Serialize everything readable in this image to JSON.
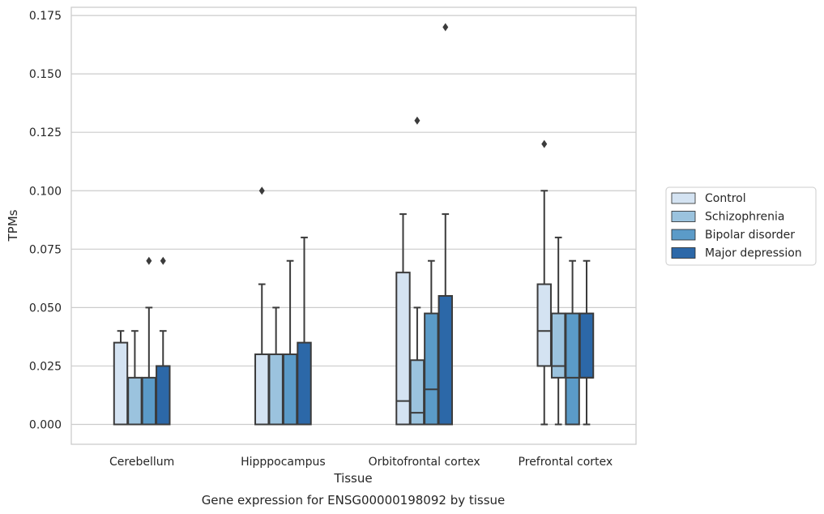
{
  "chart_data": {
    "type": "boxplot",
    "xlabel": "Tissue",
    "ylabel": "TPMs",
    "caption": "Gene expression for ENSG00000198092 by tissue",
    "categories": [
      "Cerebellum",
      "Hipppocampus",
      "Orbitofrontal cortex",
      "Prefrontal cortex"
    ],
    "ylim": [
      -0.0085,
      0.1785
    ],
    "yticks": [
      "0.000",
      "0.025",
      "0.050",
      "0.075",
      "0.100",
      "0.125",
      "0.150",
      "0.175"
    ],
    "ytick_values": [
      0,
      0.025,
      0.05,
      0.075,
      0.1,
      0.125,
      0.15,
      0.175
    ],
    "grid": true,
    "legend": {
      "placement": "right"
    },
    "series": [
      {
        "name": "Control",
        "color": "#d4e3f2",
        "boxes": [
          {
            "q1": 0.0,
            "median": 0.0,
            "q3": 0.035,
            "whislo": 0.0,
            "whishi": 0.04,
            "fliers": []
          },
          {
            "q1": 0.0,
            "median": 0.0,
            "q3": 0.03,
            "whislo": 0.0,
            "whishi": 0.06,
            "fliers": [
              0.1
            ]
          },
          {
            "q1": 0.0,
            "median": 0.01,
            "q3": 0.065,
            "whislo": 0.0,
            "whishi": 0.09,
            "fliers": []
          },
          {
            "q1": 0.025,
            "median": 0.04,
            "q3": 0.06,
            "whislo": 0.0,
            "whishi": 0.1,
            "fliers": [
              0.12
            ]
          }
        ]
      },
      {
        "name": "Schizophrenia",
        "color": "#9bc3de",
        "boxes": [
          {
            "q1": 0.0,
            "median": 0.0,
            "q3": 0.02,
            "whislo": 0.0,
            "whishi": 0.04,
            "fliers": []
          },
          {
            "q1": 0.0,
            "median": 0.0,
            "q3": 0.03,
            "whislo": 0.0,
            "whishi": 0.05,
            "fliers": []
          },
          {
            "q1": 0.0,
            "median": 0.005,
            "q3": 0.0275,
            "whislo": 0.0,
            "whishi": 0.05,
            "fliers": [
              0.13
            ]
          },
          {
            "q1": 0.02,
            "median": 0.025,
            "q3": 0.0475,
            "whislo": 0.0,
            "whishi": 0.08,
            "fliers": []
          }
        ]
      },
      {
        "name": "Bipolar disorder",
        "color": "#5b9bc8",
        "boxes": [
          {
            "q1": 0.0,
            "median": 0.0,
            "q3": 0.02,
            "whislo": 0.0,
            "whishi": 0.05,
            "fliers": [
              0.07
            ]
          },
          {
            "q1": 0.0,
            "median": 0.0,
            "q3": 0.03,
            "whislo": 0.0,
            "whishi": 0.07,
            "fliers": []
          },
          {
            "q1": 0.0,
            "median": 0.015,
            "q3": 0.0475,
            "whislo": 0.0,
            "whishi": 0.07,
            "fliers": []
          },
          {
            "q1": 0.0,
            "median": 0.02,
            "q3": 0.0475,
            "whislo": 0.0,
            "whishi": 0.07,
            "fliers": []
          }
        ]
      },
      {
        "name": "Major depression",
        "color": "#2c68a8",
        "boxes": [
          {
            "q1": 0.0,
            "median": 0.0,
            "q3": 0.025,
            "whislo": 0.0,
            "whishi": 0.04,
            "fliers": [
              0.07
            ]
          },
          {
            "q1": 0.0,
            "median": 0.0,
            "q3": 0.035,
            "whislo": 0.0,
            "whishi": 0.08,
            "fliers": []
          },
          {
            "q1": 0.0,
            "median": 0.0,
            "q3": 0.055,
            "whislo": 0.0,
            "whishi": 0.09,
            "fliers": [
              0.17
            ]
          },
          {
            "q1": 0.02,
            "median": 0.02,
            "q3": 0.0475,
            "whislo": 0.0,
            "whishi": 0.07,
            "fliers": []
          }
        ]
      }
    ],
    "colors": {
      "grid": "#cccccc",
      "line": "#3b3b3b",
      "frame": "#cccccc"
    }
  }
}
